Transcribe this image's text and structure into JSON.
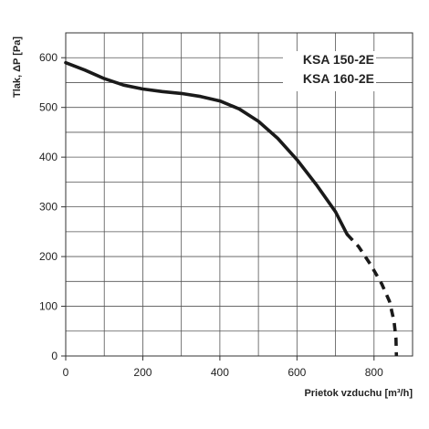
{
  "chart_data": {
    "type": "line",
    "xlabel": "Prietok vzduchu [m³/h]",
    "ylabel": "Tlak, ΔP [Pa]",
    "xlim": [
      0,
      900
    ],
    "ylim": [
      0,
      650
    ],
    "x_ticks": [
      0,
      200,
      400,
      600,
      800
    ],
    "y_ticks": [
      0,
      100,
      200,
      300,
      400,
      500,
      600
    ],
    "x_grid_step": 100,
    "y_grid_step": 50,
    "grid": true,
    "annotations": [
      "KSA 150-2E",
      "KSA 160-2E"
    ],
    "series": [
      {
        "style": "solid",
        "points": [
          [
            0,
            590
          ],
          [
            50,
            575
          ],
          [
            100,
            558
          ],
          [
            150,
            545
          ],
          [
            200,
            537
          ],
          [
            250,
            532
          ],
          [
            300,
            528
          ],
          [
            350,
            522
          ],
          [
            400,
            513
          ],
          [
            450,
            497
          ],
          [
            500,
            472
          ],
          [
            550,
            438
          ],
          [
            600,
            395
          ],
          [
            650,
            345
          ],
          [
            700,
            290
          ],
          [
            730,
            245
          ]
        ]
      },
      {
        "style": "dashed",
        "points": [
          [
            730,
            245
          ],
          [
            760,
            220
          ],
          [
            790,
            185
          ],
          [
            820,
            145
          ],
          [
            840,
            110
          ],
          [
            852,
            70
          ],
          [
            857,
            35
          ],
          [
            858,
            0
          ]
        ]
      }
    ]
  }
}
